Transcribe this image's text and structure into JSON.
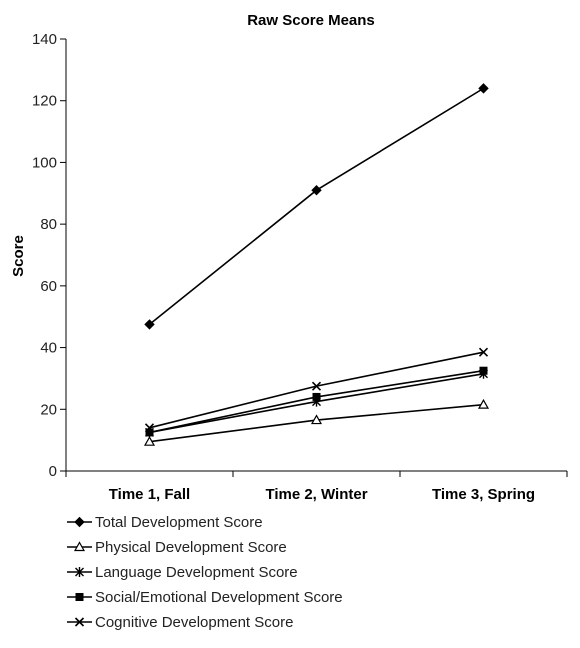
{
  "chart_data": {
    "type": "line",
    "title": "Raw Score Means",
    "ylabel": "Score",
    "xlabel": "",
    "categories": [
      "Time 1, Fall",
      "Time 2, Winter",
      "Time 3, Spring"
    ],
    "ylim": [
      0,
      140
    ],
    "yticks": [
      0,
      20,
      40,
      60,
      80,
      100,
      120,
      140
    ],
    "grid": false,
    "legend_position": "bottom",
    "series": [
      {
        "name": "Total Development Score",
        "marker": "diamond",
        "values": [
          47.5,
          91,
          124
        ]
      },
      {
        "name": "Physical Development Score",
        "marker": "triangle-open",
        "values": [
          9.5,
          16.5,
          21.5
        ]
      },
      {
        "name": "Language Development Score",
        "marker": "star",
        "values": [
          12.5,
          22.5,
          31.5
        ]
      },
      {
        "name": "Social/Emotional Development Score",
        "marker": "square",
        "values": [
          12.5,
          24,
          32.5
        ]
      },
      {
        "name": "Cognitive Development Score",
        "marker": "x",
        "values": [
          14,
          27.5,
          38.5
        ]
      }
    ]
  }
}
